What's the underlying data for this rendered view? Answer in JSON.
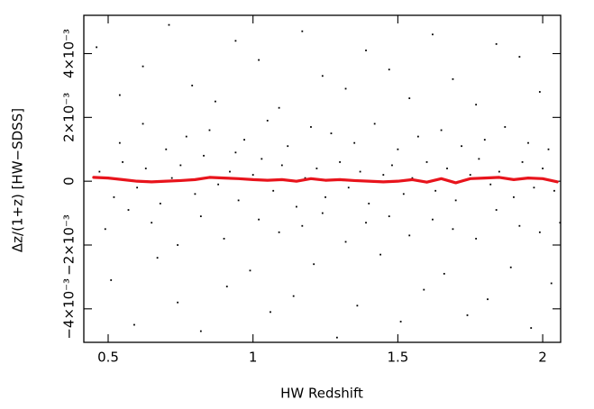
{
  "chart_data": {
    "type": "scatter",
    "x_label": "HW Redshift",
    "y_label": "Δz/(1+z) [HW−SDSS]",
    "xlim": [
      0.416,
      2.062
    ],
    "ylim": [
      -0.00505,
      0.0052
    ],
    "xticks": [
      0.5,
      1,
      1.5,
      2
    ],
    "yticks": [
      {
        "value": -0.004,
        "label": "−4×10⁻³"
      },
      {
        "value": -0.002,
        "label": "−2×10⁻³"
      },
      0,
      {
        "value": 0.002,
        "label": "2×10⁻³"
      },
      {
        "value": 0.004,
        "label": "4×10⁻³"
      }
    ],
    "series": [
      {
        "type": "scatter",
        "color": "#000000",
        "x": [
          0.47,
          0.52,
          0.55,
          0.6,
          0.63,
          0.68,
          0.72,
          0.75,
          0.8,
          0.83,
          0.88,
          0.92,
          0.95,
          1.0,
          1.03,
          1.07,
          1.1,
          1.15,
          1.18,
          1.22,
          1.25,
          1.3,
          1.33,
          1.37,
          1.4,
          1.45,
          1.48,
          1.52,
          1.55,
          1.6,
          1.63,
          1.67,
          1.7,
          1.75,
          1.78,
          1.82,
          1.85,
          1.9,
          1.93,
          1.97,
          2.0,
          2.04
        ],
        "values": [
          0.0003,
          -0.0005,
          0.0006,
          -0.0002,
          0.0004,
          -0.0007,
          0.0001,
          0.0005,
          -0.0004,
          0.0008,
          -0.0001,
          0.0003,
          -0.0006,
          0.0002,
          0.0007,
          -0.0003,
          0.0005,
          -0.0008,
          0.0001,
          0.0004,
          -0.0005,
          0.0006,
          -0.0002,
          0.0003,
          -0.0007,
          0.0002,
          0.0005,
          -0.0004,
          0.0001,
          0.0006,
          -0.0003,
          0.0004,
          -0.0006,
          0.0002,
          0.0007,
          -0.0001,
          0.0003,
          -0.0005,
          0.0006,
          -0.0002,
          0.0004,
          -0.0003
        ]
      },
      {
        "type": "scatter",
        "color": "#000000",
        "x": [
          0.49,
          0.54,
          0.57,
          0.62,
          0.65,
          0.7,
          0.74,
          0.77,
          0.82,
          0.85,
          0.9,
          0.94,
          0.97,
          1.02,
          1.05,
          1.09,
          1.12,
          1.17,
          1.2,
          1.24,
          1.27,
          1.32,
          1.35,
          1.39,
          1.42,
          1.47,
          1.5,
          1.54,
          1.57,
          1.62,
          1.65,
          1.69,
          1.72,
          1.77,
          1.8,
          1.84,
          1.87,
          1.92,
          1.95,
          1.99,
          2.02,
          2.06
        ],
        "values": [
          -0.0015,
          0.0012,
          -0.0009,
          0.0018,
          -0.0013,
          0.001,
          -0.002,
          0.0014,
          -0.0011,
          0.0016,
          -0.0018,
          0.0009,
          0.0013,
          -0.0012,
          0.0019,
          -0.0016,
          0.0011,
          -0.0014,
          0.0017,
          -0.001,
          0.0015,
          -0.0019,
          0.0012,
          -0.0013,
          0.0018,
          -0.0011,
          0.001,
          -0.0017,
          0.0014,
          -0.0012,
          0.0016,
          -0.0015,
          0.0011,
          -0.0018,
          0.0013,
          -0.0009,
          0.0017,
          -0.0014,
          0.0012,
          -0.0016,
          0.001,
          -0.0013
        ]
      },
      {
        "type": "scatter",
        "color": "#000000",
        "x": [
          0.46,
          0.51,
          0.54,
          0.59,
          0.62,
          0.67,
          0.71,
          0.74,
          0.79,
          0.82,
          0.87,
          0.91,
          0.94,
          0.99,
          1.02,
          1.06,
          1.09,
          1.14,
          1.17,
          1.21,
          1.24,
          1.29,
          1.32,
          1.36,
          1.39,
          1.44,
          1.47,
          1.51,
          1.54,
          1.59,
          1.62,
          1.66,
          1.69,
          1.74,
          1.77,
          1.81,
          1.84,
          1.89,
          1.92,
          1.96,
          1.99,
          2.03
        ],
        "values": [
          0.0042,
          -0.0031,
          0.0027,
          -0.0045,
          0.0036,
          -0.0024,
          0.0049,
          -0.0038,
          0.003,
          -0.0047,
          0.0025,
          -0.0033,
          0.0044,
          -0.0028,
          0.0038,
          -0.0041,
          0.0023,
          -0.0036,
          0.0047,
          -0.0026,
          0.0033,
          -0.0049,
          0.0029,
          -0.0039,
          0.0041,
          -0.0023,
          0.0035,
          -0.0044,
          0.0026,
          -0.0034,
          0.0046,
          -0.0029,
          0.0032,
          -0.0042,
          0.0024,
          -0.0037,
          0.0043,
          -0.0027,
          0.0039,
          -0.0046,
          0.0028,
          -0.0032
        ]
      },
      {
        "type": "line",
        "color": "#e8141c",
        "x": [
          0.45,
          0.5,
          0.55,
          0.6,
          0.65,
          0.7,
          0.75,
          0.8,
          0.85,
          0.9,
          0.95,
          1.0,
          1.05,
          1.1,
          1.15,
          1.2,
          1.25,
          1.3,
          1.35,
          1.4,
          1.45,
          1.5,
          1.55,
          1.6,
          1.65,
          1.7,
          1.75,
          1.8,
          1.85,
          1.9,
          1.95,
          2.0,
          2.05
        ],
        "values": [
          0.00012,
          0.0001,
          5e-05,
          0.0,
          -2e-05,
          0.0,
          2e-05,
          5e-05,
          0.00012,
          0.0001,
          8e-05,
          5e-05,
          3e-05,
          5e-05,
          0.0,
          8e-05,
          3e-05,
          5e-05,
          2e-05,
          0.0,
          -2e-05,
          0.0,
          5e-05,
          -3e-05,
          8e-05,
          -5e-05,
          8e-05,
          0.0001,
          0.00012,
          5e-05,
          0.0001,
          8e-05,
          -2e-05
        ]
      }
    ]
  }
}
